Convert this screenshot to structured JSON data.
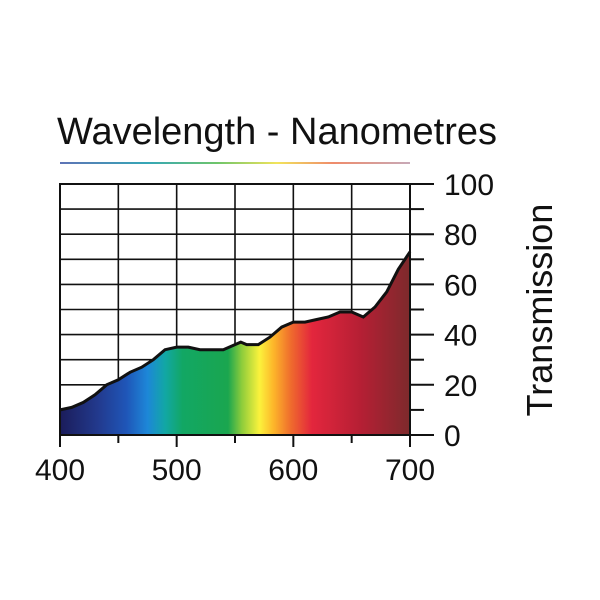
{
  "chart_data": {
    "type": "area",
    "title": "Wavelength - Nanometres",
    "xlabel": "",
    "ylabel": "Transmission",
    "xlim": [
      400,
      700
    ],
    "ylim": [
      0,
      100
    ],
    "x_ticks": [
      "400",
      "500",
      "600",
      "700"
    ],
    "y_ticks": [
      "0",
      "20",
      "40",
      "60",
      "80",
      "100"
    ],
    "grid": true,
    "x": [
      400,
      410,
      420,
      430,
      440,
      450,
      460,
      470,
      480,
      490,
      500,
      510,
      520,
      530,
      540,
      550,
      555,
      560,
      570,
      580,
      590,
      600,
      610,
      620,
      630,
      640,
      650,
      660,
      670,
      680,
      690,
      700
    ],
    "values": [
      10,
      11,
      13,
      16,
      20,
      22,
      25,
      27,
      30,
      34,
      35,
      35,
      34,
      34,
      34,
      36,
      37,
      36,
      36,
      39,
      43,
      45,
      45,
      46,
      47,
      49,
      49,
      47,
      51,
      57,
      66,
      73
    ]
  }
}
